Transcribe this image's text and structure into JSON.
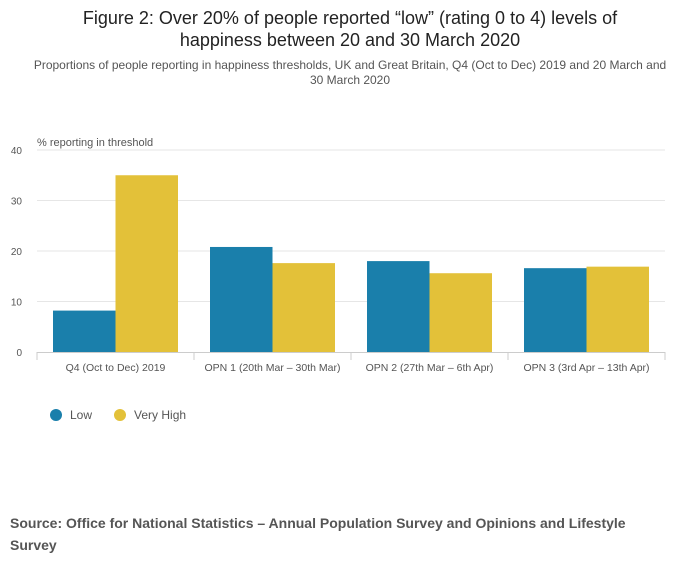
{
  "title": "Figure 2: Over 20% of people reported “low” (rating 0 to 4) levels of happiness between 20 and 30 March 2020",
  "subtitle": "Proportions of people reporting in happiness thresholds, UK and Great Britain, Q4 (Oct to Dec) 2019 and 20 March and 30 March 2020",
  "source": "Source: Office for National Statistics – Annual Population Survey and Opinions and Lifestyle Survey",
  "chart_data": {
    "type": "bar",
    "title": "Figure 2: Over 20% of people reported “low” (rating 0 to 4) levels of happiness between 20 and 30 March 2020",
    "subtitle": "Proportions of people reporting in happiness thresholds, UK and Great Britain, Q4 (Oct to Dec) 2019 and 20 March and 30 March 2020",
    "ylabel": "% reporting in threshold",
    "xlabel": "",
    "ylim": [
      0,
      40
    ],
    "yticks": [
      0,
      10,
      20,
      30,
      40
    ],
    "grid": true,
    "legend": "bottom-left",
    "categories": [
      "Q4 (Oct to Dec) 2019",
      "OPN 1 (20th Mar – 30th Mar)",
      "OPN 2 (27th Mar – 6th Apr)",
      "OPN 3 (3rd Apr – 13th Apr)"
    ],
    "series": [
      {
        "name": "Low",
        "color": "#1a7fab",
        "values": [
          8.2,
          20.8,
          18.0,
          16.6
        ]
      },
      {
        "name": "Very High",
        "color": "#e3c139",
        "values": [
          35.0,
          17.6,
          15.6,
          16.9
        ]
      }
    ]
  }
}
